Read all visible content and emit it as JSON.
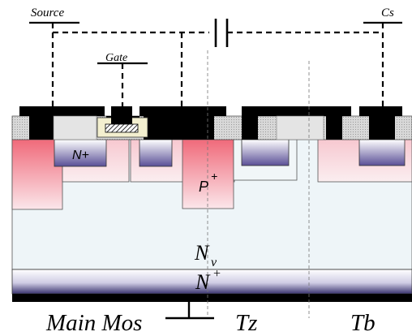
{
  "labels": {
    "source": "Source",
    "gate": "Gate",
    "cs": "Cs",
    "n_plus_well": "N+",
    "p_plus_main": "P",
    "p_plus_sup": "+",
    "nv_main": "N",
    "nv_sub": "v",
    "n_plus_sub_main": "N",
    "n_plus_sub_sup": "+",
    "main_mos": "Main Mos",
    "tz": "Tz",
    "tb": "Tb"
  },
  "colors": {
    "metal": "#000000",
    "oxide": "#c8c8c8",
    "drift": "#eef5f8",
    "p_region": "#f06a7a",
    "n_region": "#5a4f96",
    "substrate_dark": "#3a3470"
  }
}
